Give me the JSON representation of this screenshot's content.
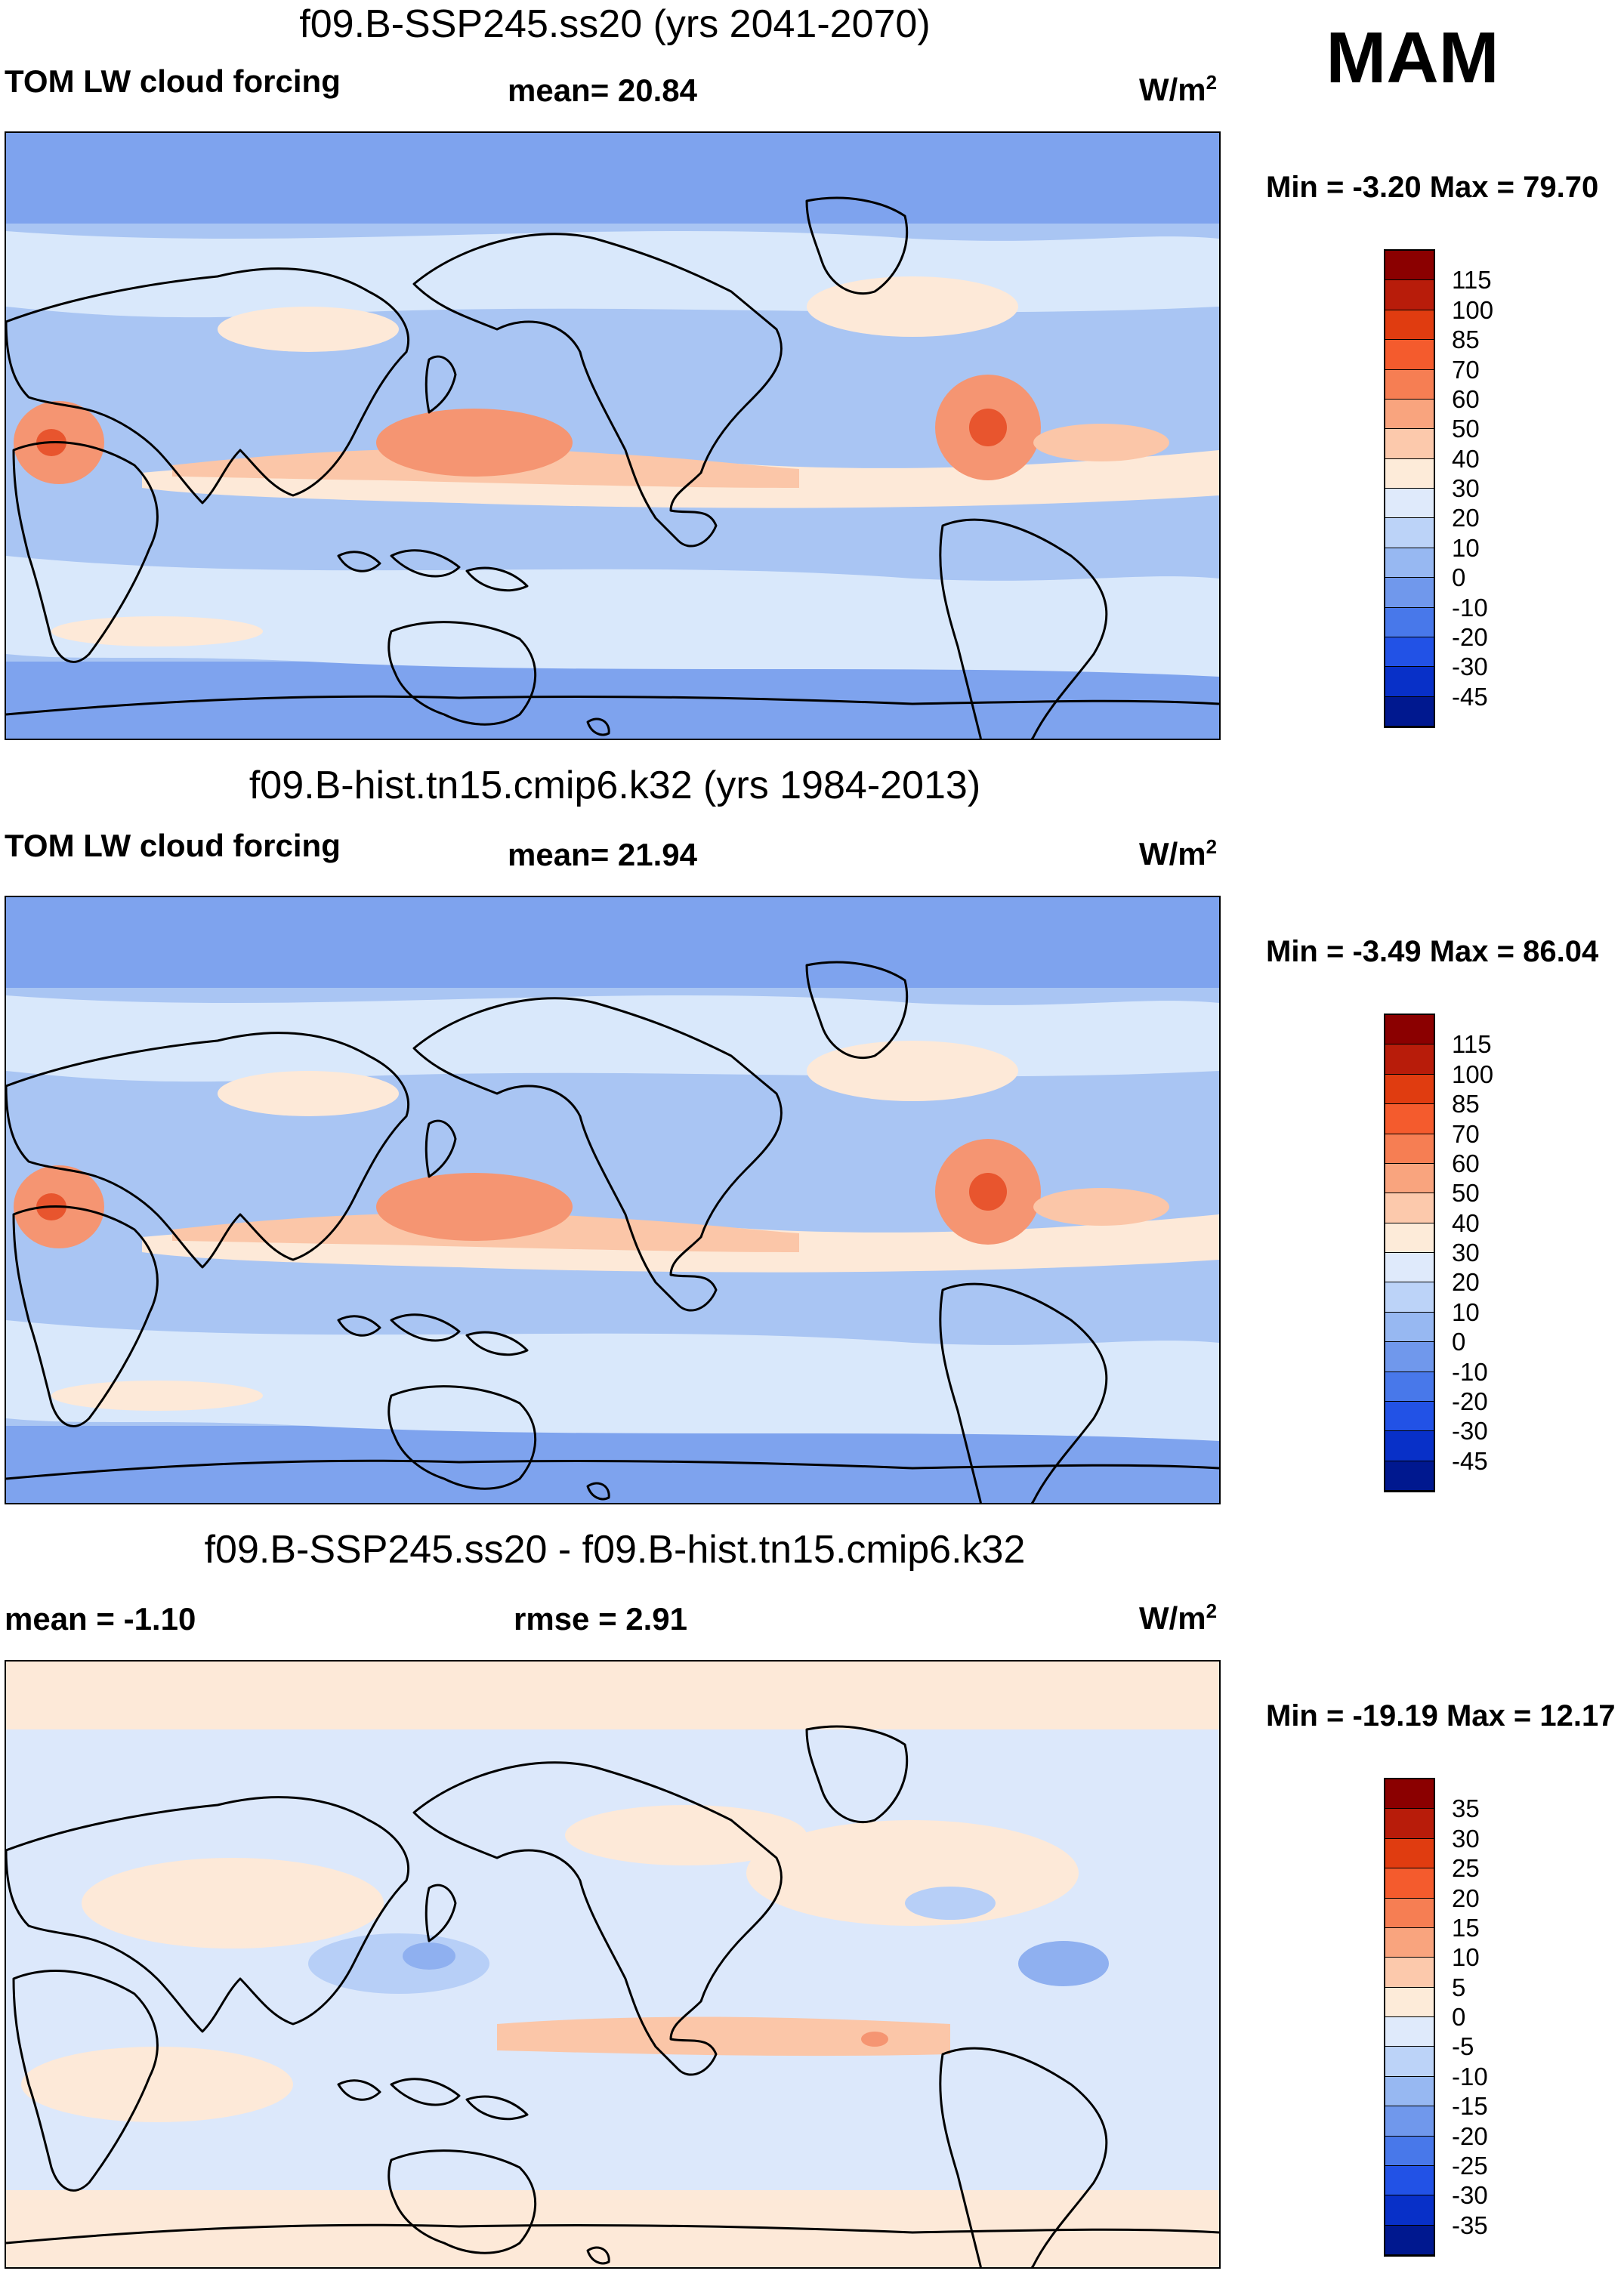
{
  "season": "MAM",
  "panels": [
    {
      "title": "f09.B-SSP245.ss20 (yrs 2041-2070)",
      "left_label": "TOM LW cloud forcing",
      "center_label": "mean=  20.84",
      "units_base": "W/m",
      "units_exp": "2",
      "minmax": "Min =  -3.20 Max =  79.70",
      "colorbar": {
        "ticks": [
          "115",
          "100",
          "85",
          "70",
          "60",
          "50",
          "40",
          "30",
          "20",
          "10",
          "0",
          "-10",
          "-20",
          "-30",
          "-45"
        ],
        "colors": [
          "#8b0000",
          "#b81c0a",
          "#e03c10",
          "#f45b2d",
          "#f67e53",
          "#f9a47e",
          "#fcc9ac",
          "#fdebd9",
          "#dfeafb",
          "#bcd3f8",
          "#97b8f2",
          "#7098ec",
          "#4878ea",
          "#2252e6",
          "#0830c8",
          "#00188f"
        ]
      },
      "map_palette": [
        "#a9c5f3",
        "#7ea3ee",
        "#d9e8fb",
        "#fde9d8",
        "#fbc6a8",
        "#f59572",
        "#e8552e"
      ]
    },
    {
      "title": "f09.B-hist.tn15.cmip6.k32 (yrs 1984-2013)",
      "left_label": "TOM LW cloud forcing",
      "center_label": "mean=  21.94",
      "units_base": "W/m",
      "units_exp": "2",
      "minmax": "Min =  -3.49 Max =  86.04",
      "colorbar": {
        "ticks": [
          "115",
          "100",
          "85",
          "70",
          "60",
          "50",
          "40",
          "30",
          "20",
          "10",
          "0",
          "-10",
          "-20",
          "-30",
          "-45"
        ],
        "colors": [
          "#8b0000",
          "#b81c0a",
          "#e03c10",
          "#f45b2d",
          "#f67e53",
          "#f9a47e",
          "#fcc9ac",
          "#fdebd9",
          "#dfeafb",
          "#bcd3f8",
          "#97b8f2",
          "#7098ec",
          "#4878ea",
          "#2252e6",
          "#0830c8",
          "#00188f"
        ]
      },
      "map_palette": [
        "#a9c5f3",
        "#7ea3ee",
        "#d9e8fb",
        "#fde9d8",
        "#fbc6a8",
        "#f59572",
        "#e8552e"
      ]
    },
    {
      "title": "f09.B-SSP245.ss20 - f09.B-hist.tn15.cmip6.k32",
      "left_label": "mean =  -1.10",
      "center_label": "rmse =   2.91",
      "units_base": "W/m",
      "units_exp": "2",
      "minmax": "Min = -19.19 Max =  12.17",
      "colorbar": {
        "ticks": [
          "35",
          "30",
          "25",
          "20",
          "15",
          "10",
          "5",
          "0",
          "-5",
          "-10",
          "-15",
          "-20",
          "-25",
          "-30",
          "-35"
        ],
        "colors": [
          "#8b0000",
          "#b81c0a",
          "#e03c10",
          "#f45b2d",
          "#f67e53",
          "#f9a47e",
          "#fcc9ac",
          "#fdebd9",
          "#dfeafb",
          "#bcd3f8",
          "#97b8f2",
          "#7098ec",
          "#4878ea",
          "#2252e6",
          "#0830c8",
          "#00188f"
        ]
      },
      "map_palette": [
        "#dce8fb",
        "#fde9d8",
        "#b7cff7",
        "#fbc6a8",
        "#8fb0f0",
        "#f59572",
        "#6f96ec"
      ]
    }
  ]
}
